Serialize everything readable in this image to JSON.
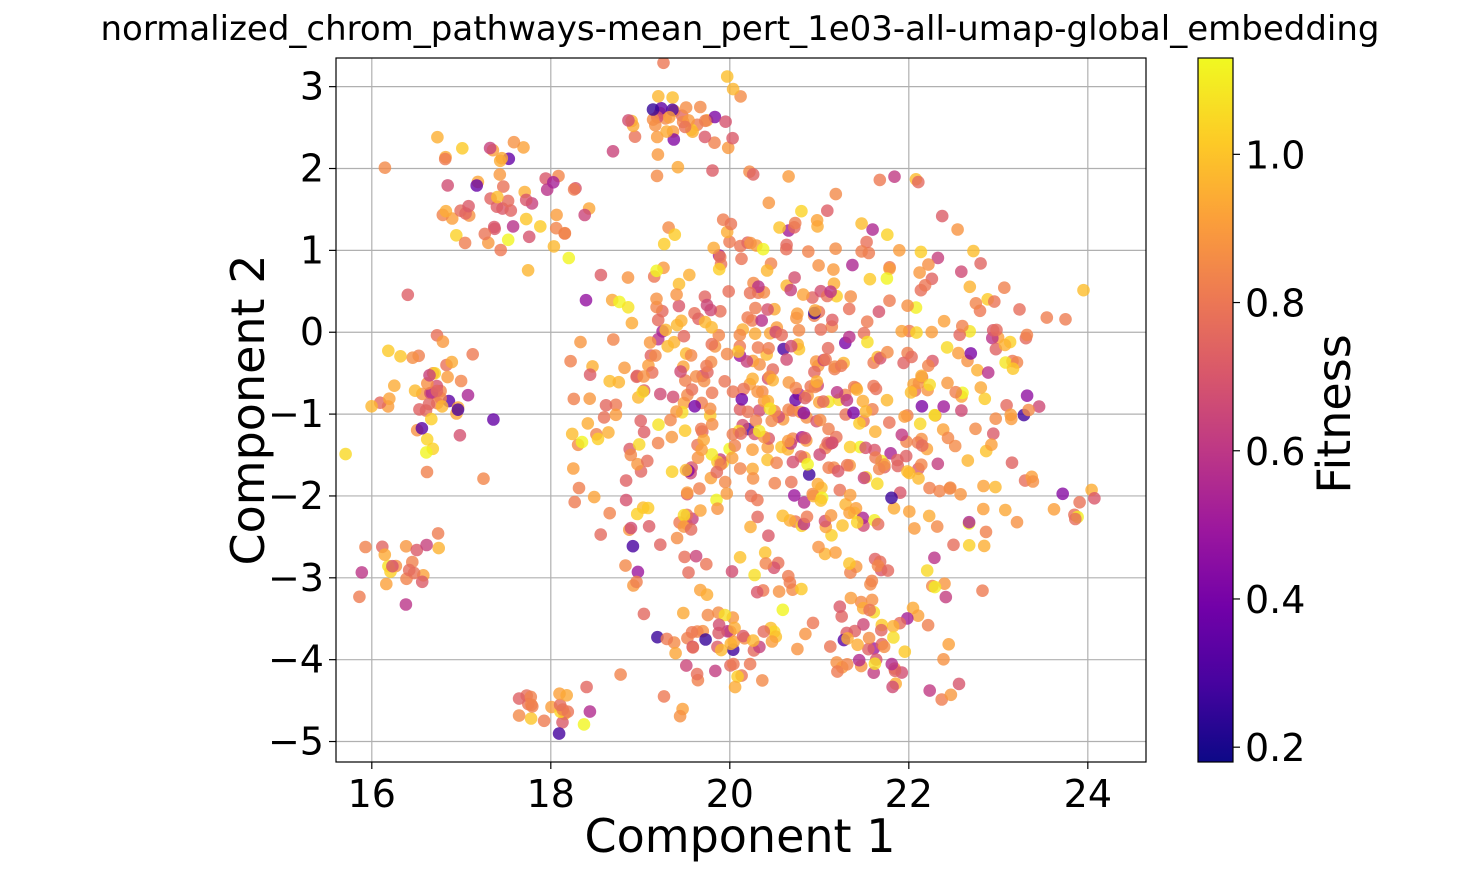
{
  "chart_data": {
    "type": "scatter",
    "title": "normalized_chrom_pathways-mean_pert_1e03-all-umap-global_embedding",
    "xlabel": "Component 1",
    "ylabel": "Component 2",
    "xlim": [
      15.6,
      24.65
    ],
    "ylim": [
      -5.25,
      3.35
    ],
    "xticks": [
      16,
      18,
      20,
      22,
      24
    ],
    "yticks": [
      3,
      2,
      1,
      0,
      -1,
      -2,
      -3,
      -4,
      -5
    ],
    "xtick_labels": [
      "16",
      "18",
      "20",
      "22",
      "24"
    ],
    "ytick_labels": [
      "3",
      "2",
      "1",
      "0",
      "−1",
      "−2",
      "−3",
      "−4",
      "−5"
    ],
    "grid": true,
    "colormap": "plasma",
    "colorbar": {
      "label": "Fitness",
      "min": 0.18,
      "max": 1.13,
      "ticks": [
        1.0,
        0.8,
        0.6,
        0.4,
        0.2
      ],
      "tick_labels": [
        "1.0",
        "0.8",
        "0.6",
        "0.4",
        "0.2"
      ]
    },
    "point_count": 940
  }
}
